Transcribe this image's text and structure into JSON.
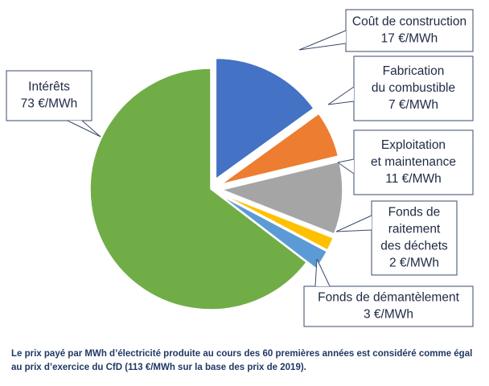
{
  "chart_data": {
    "type": "pie",
    "categories": [
      [
        "Coût de construction"
      ],
      [
        "Fabrication",
        "du combustible"
      ],
      [
        "Exploitation",
        "et maintenance"
      ],
      [
        "Fonds de",
        "raitement",
        "des déchets"
      ],
      [
        "Fonds de démantèlement"
      ],
      [
        "Intérêts"
      ]
    ],
    "values": [
      17,
      7,
      11,
      2,
      3,
      73
    ],
    "value_labels": [
      "17 €/MWh",
      "7 €/MWh",
      "11 €/MWh",
      "2 €/MWh",
      "3 €/MWh",
      "73 €/MWh"
    ],
    "colors": [
      "#4472c4",
      "#ed7d31",
      "#a5a5a5",
      "#ffc000",
      "#5b9bd5",
      "#70ad47"
    ],
    "footnote": [
      "Le prix payé par MWh d’électricité produite au cours des 60 premières années est considéré comme égal",
      "au prix d’exercice du CfD (113 €/MWh sur la base des prix de 2019)."
    ]
  }
}
